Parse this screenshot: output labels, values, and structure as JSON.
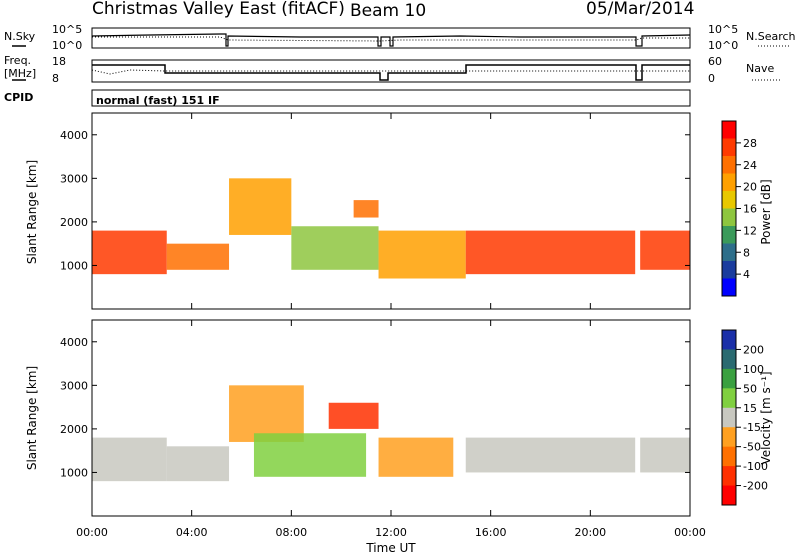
{
  "header": {
    "station": "Christmas Valley East (fitACF)",
    "beam": "Beam 10",
    "date": "05/Mar/2014"
  },
  "status_panels": {
    "nsky_label": "N.Sky",
    "nsearch_label": "N.Search",
    "freq_label_line1": "Freq.",
    "freq_label_line2": "[MHz]",
    "nave_label": "Nave",
    "cpid_label": "CPID",
    "cpid_value": "normal (fast) 151 IF",
    "noise_left_ticks": [
      "10^5",
      "10^0"
    ],
    "noise_right_ticks": [
      "10^5",
      "10^0"
    ],
    "freq_left_ticks": [
      "18",
      "8"
    ],
    "freq_right_ticks": [
      "60",
      "0"
    ]
  },
  "power_colorbar": {
    "label": "Power [dB]",
    "ticks": [
      "28",
      "24",
      "20",
      "16",
      "12",
      "8",
      "4"
    ],
    "colors": [
      "#ff0000",
      "#ff3a00",
      "#ff7000",
      "#ffa000",
      "#e8c800",
      "#8ec63f",
      "#3a9a5a",
      "#2d6e8a",
      "#1a3c9e",
      "#0000ff"
    ]
  },
  "velocity_colorbar": {
    "label": "Velocity [m s⁻¹]",
    "ticks": [
      "200",
      "100",
      "50",
      "15",
      "-15",
      "-50",
      "-100",
      "-200"
    ],
    "colors": [
      "#1a2fa8",
      "#2a6a70",
      "#3aa040",
      "#80d040",
      "#c8c8c0",
      "#ffa020",
      "#ff7000",
      "#ff3000",
      "#ff0000"
    ]
  },
  "chart_data": [
    {
      "type": "heatmap",
      "title": "",
      "xlabel": "",
      "ylabel": "Slant Range [km]",
      "x_ticks": [
        "00:00",
        "04:00",
        "08:00",
        "12:00",
        "16:00",
        "20:00",
        "00:00"
      ],
      "y_ticks": [
        "1000",
        "2000",
        "3000",
        "4000"
      ],
      "xlim": [
        0,
        24
      ],
      "ylim": [
        0,
        4500
      ],
      "value_label": "Power [dB]",
      "bands": [
        {
          "x": [
            0.0,
            3.0
          ],
          "y": [
            800,
            1800
          ],
          "value": 28
        },
        {
          "x": [
            3.0,
            5.5
          ],
          "y": [
            900,
            1500
          ],
          "value": 24
        },
        {
          "x": [
            5.5,
            8.0
          ],
          "y": [
            1700,
            3000
          ],
          "value": 20
        },
        {
          "x": [
            8.0,
            11.5
          ],
          "y": [
            900,
            1900
          ],
          "value": 16
        },
        {
          "x": [
            10.5,
            11.5
          ],
          "y": [
            2100,
            2500
          ],
          "value": 24
        },
        {
          "x": [
            11.5,
            15.0
          ],
          "y": [
            700,
            1800
          ],
          "value": 20
        },
        {
          "x": [
            15.0,
            21.8
          ],
          "y": [
            800,
            1800
          ],
          "value": 28
        },
        {
          "x": [
            22.0,
            24.0
          ],
          "y": [
            900,
            1800
          ],
          "value": 28
        }
      ]
    },
    {
      "type": "heatmap",
      "title": "",
      "xlabel": "Time UT",
      "ylabel": "Slant Range [km]",
      "x_ticks": [
        "00:00",
        "04:00",
        "08:00",
        "12:00",
        "16:00",
        "20:00",
        "00:00"
      ],
      "y_ticks": [
        "1000",
        "2000",
        "3000",
        "4000"
      ],
      "xlim": [
        0,
        24
      ],
      "ylim": [
        0,
        4500
      ],
      "value_label": "Velocity [m s⁻¹]",
      "bands": [
        {
          "x": [
            0.0,
            3.0
          ],
          "y": [
            800,
            1800
          ],
          "value": 0
        },
        {
          "x": [
            3.0,
            5.5
          ],
          "y": [
            800,
            1600
          ],
          "value": 0
        },
        {
          "x": [
            5.5,
            8.5
          ],
          "y": [
            1700,
            3000
          ],
          "value": -30
        },
        {
          "x": [
            6.5,
            11.0
          ],
          "y": [
            900,
            1900
          ],
          "value": 40
        },
        {
          "x": [
            9.5,
            11.5
          ],
          "y": [
            2000,
            2600
          ],
          "value": -150
        },
        {
          "x": [
            11.5,
            14.5
          ],
          "y": [
            900,
            1800
          ],
          "value": -40
        },
        {
          "x": [
            15.0,
            21.8
          ],
          "y": [
            1000,
            1800
          ],
          "value": 0
        },
        {
          "x": [
            22.0,
            24.0
          ],
          "y": [
            1000,
            1800
          ],
          "value": 0
        }
      ]
    }
  ]
}
